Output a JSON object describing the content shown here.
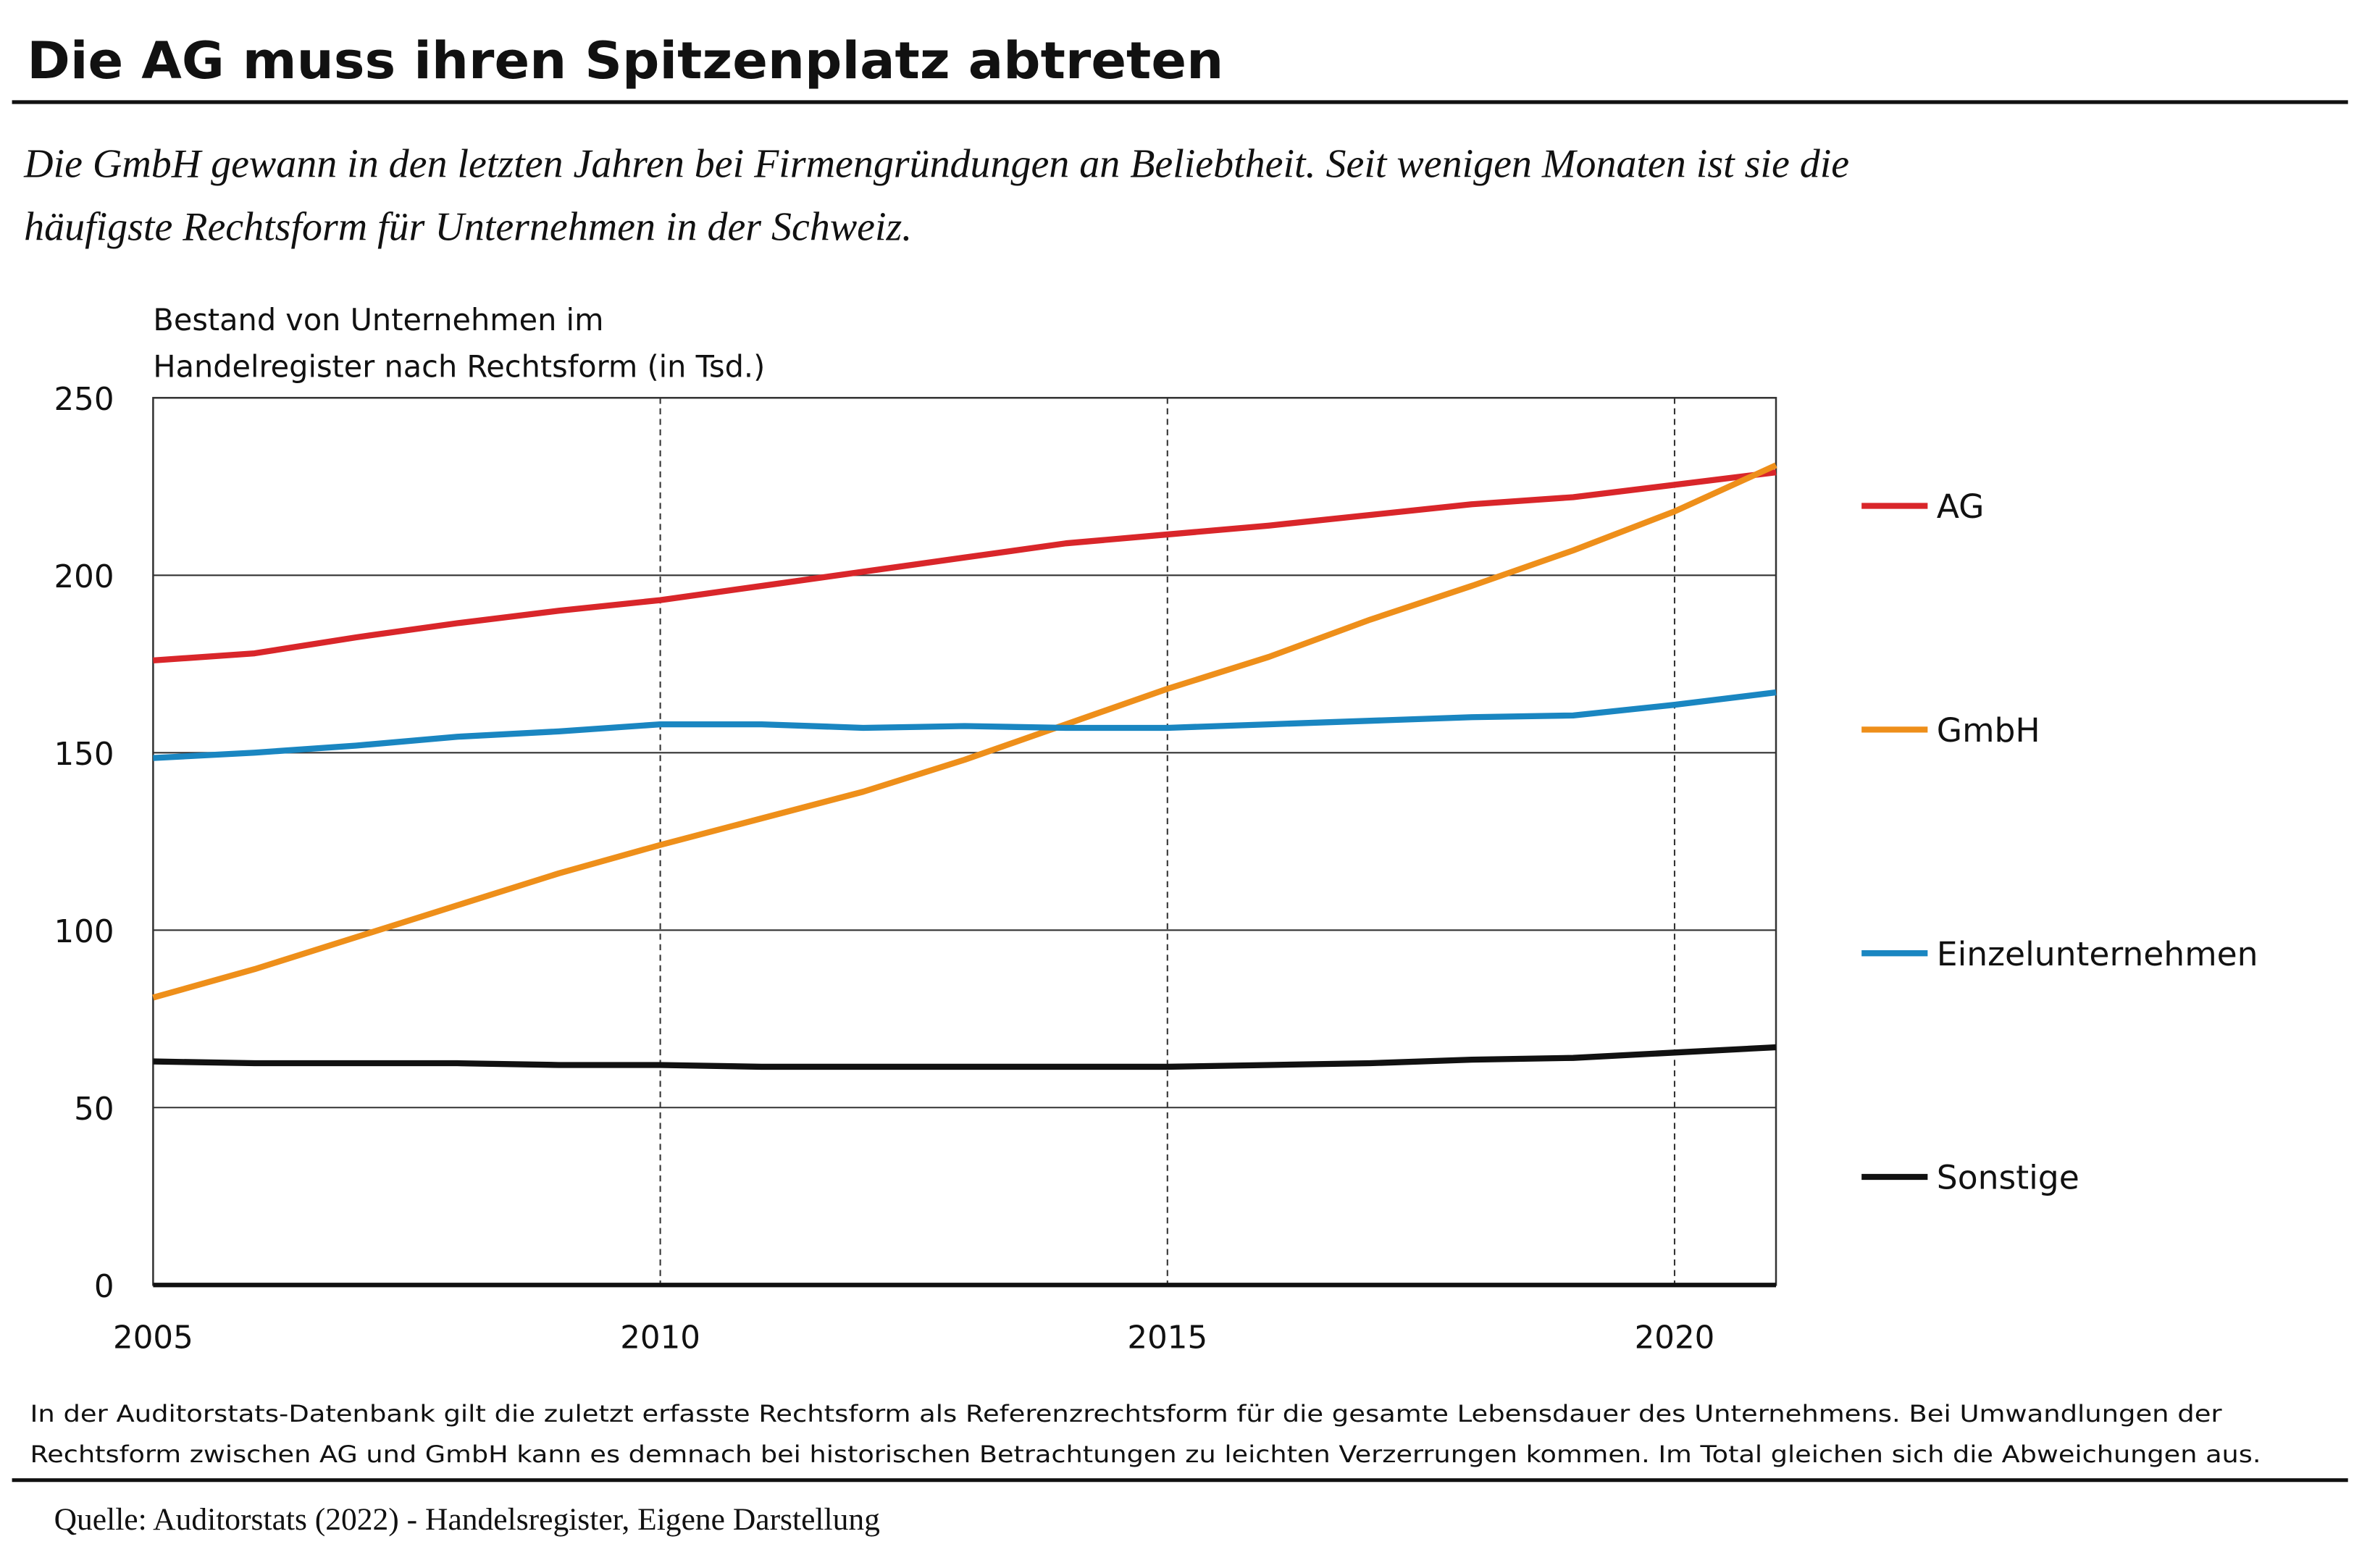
{
  "chart_data": {
    "type": "line",
    "title": "Die AG muss ihren Spitzenplatz abtreten",
    "subtitle": [
      "Die GmbH gewann in den letzten Jahren bei Firmengründungen an Beliebtheit. Seit wenigen Monaten ist sie die",
      "häufigste Rechtsform für Unternehmen in der Schweiz."
    ],
    "y_label": [
      "Bestand von Unternehmen im",
      "Handelregister nach Rechtsform (in Tsd.)"
    ],
    "x": [
      2005,
      2006,
      2007,
      2008,
      2009,
      2010,
      2011,
      2012,
      2013,
      2014,
      2015,
      2016,
      2017,
      2018,
      2019,
      2020,
      2021
    ],
    "series": [
      {
        "name": "AG",
        "color": "#d9262a",
        "values": [
          176,
          178,
          182.5,
          186.5,
          190,
          193,
          197,
          201,
          205,
          209,
          211.5,
          214,
          217,
          220,
          222,
          225.5,
          229
        ]
      },
      {
        "name": "GmbH",
        "color": "#ee8f1a",
        "values": [
          81,
          89,
          98,
          107,
          116,
          124,
          131.5,
          139,
          148,
          158,
          168,
          177,
          187.5,
          197,
          207,
          218,
          231
        ]
      },
      {
        "name": "Einzelunternehmen",
        "color": "#1a86c1",
        "values": [
          148.5,
          150,
          152,
          154.5,
          156,
          158,
          158,
          157,
          157.5,
          157,
          157,
          158,
          159,
          160,
          160.5,
          163.5,
          167
        ]
      },
      {
        "name": "Sonstige",
        "color": "#111111",
        "values": [
          63,
          62.5,
          62.5,
          62.5,
          62,
          62,
          61.5,
          61.5,
          61.5,
          61.5,
          61.5,
          62,
          62.5,
          63.5,
          64,
          65.5,
          67
        ]
      }
    ],
    "xlim": [
      2005,
      2021
    ],
    "xticks": [
      2005,
      2010,
      2015,
      2020
    ],
    "ylim": [
      0,
      250
    ],
    "yticks": [
      0,
      50,
      100,
      150,
      200,
      250
    ],
    "grid": true,
    "legend": "right",
    "note": [
      "In der Auditorstats-Datenbank gilt die zuletzt erfasste Rechtsform als Referenzrechtsform für die gesamte Lebensdauer des Unternehmens. Bei Umwandlungen der",
      "Rechtsform zwischen AG und GmbH kann es demnach bei historischen Betrachtungen zu leichten Verzerrungen kommen. Im Total gleichen sich die Abweichungen aus."
    ],
    "source": "Quelle: Auditorstats (2022) - Handelsregister, Eigene Darstellung"
  }
}
